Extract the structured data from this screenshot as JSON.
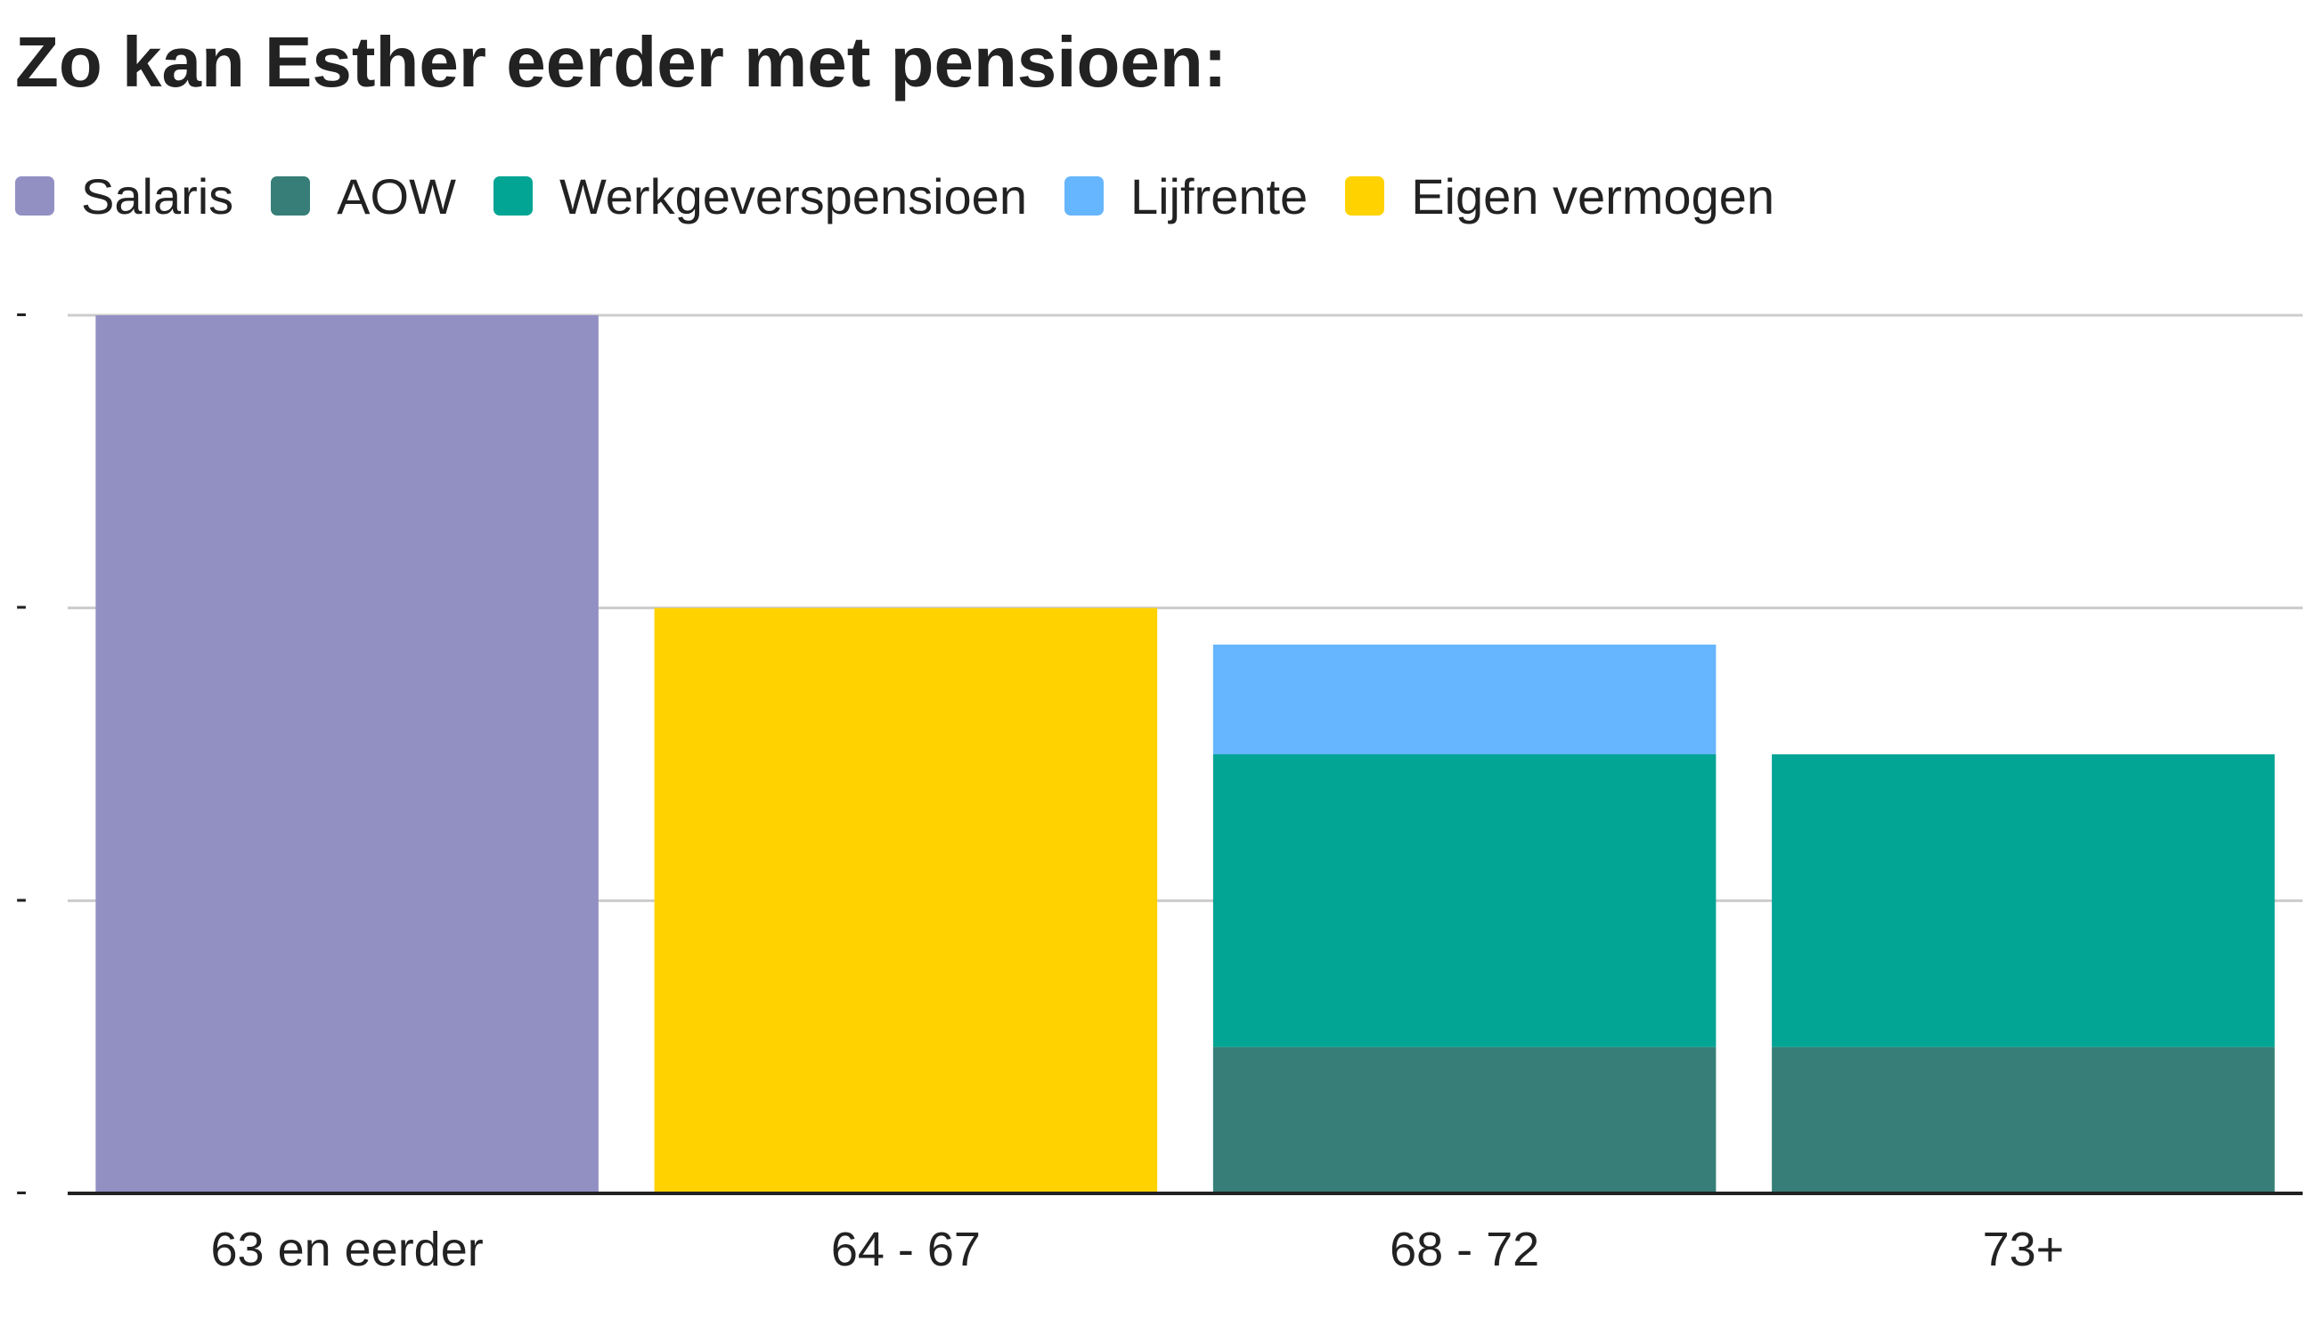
{
  "chart_data": {
    "type": "bar",
    "stacked": true,
    "title": "Zo kan Esther eerder met pensioen:",
    "categories": [
      "63 en eerder",
      "64 - 67",
      "68 - 72",
      "73+"
    ],
    "y_tick_labels": [
      "-",
      "-",
      "-",
      "-"
    ],
    "ylim": [
      0,
      3
    ],
    "grid": true,
    "legend_position": "top-left",
    "series": [
      {
        "name": "Salaris",
        "color": "#9290c3",
        "values": [
          3,
          0,
          0,
          0
        ]
      },
      {
        "name": "AOW",
        "color": "#377e78",
        "values": [
          0,
          0,
          0.5,
          0.5
        ]
      },
      {
        "name": "Werkgeverspensioen",
        "color": "#02a494",
        "values": [
          0,
          0,
          1,
          1
        ]
      },
      {
        "name": "Lijfrente",
        "color": "#66b5ff",
        "values": [
          0,
          0,
          0.375,
          0
        ]
      },
      {
        "name": "Eigen vermogen",
        "color": "#ffd200",
        "values": [
          0,
          2,
          0,
          0
        ]
      }
    ]
  }
}
